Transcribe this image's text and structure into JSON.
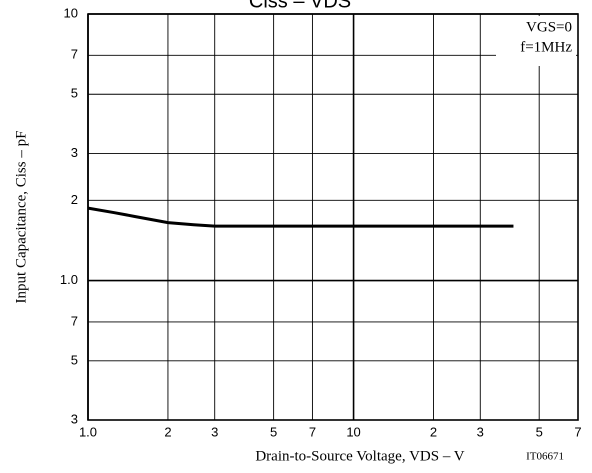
{
  "chart_data": {
    "type": "line",
    "title": "Ciss – VDS",
    "x_label": "Drain-to-Source Voltage, VDS – V",
    "y_label": "Input Capacitance, Ciss – pF",
    "annotations": [
      "VGS=0",
      "f=1MHz"
    ],
    "figure_id": "IT06671",
    "log_x": true,
    "log_y": true,
    "grid": true,
    "xlim": [
      1,
      70
    ],
    "ylim": [
      3,
      100
    ],
    "xticks": [
      {
        "value": 1,
        "label": "1.0"
      },
      2,
      3,
      5,
      7,
      10,
      {
        "value": 20,
        "label": "2"
      },
      {
        "value": 30,
        "label": "3"
      },
      {
        "value": 50,
        "label": "5"
      },
      {
        "value": 70,
        "label": "7"
      }
    ],
    "yticks": [
      3,
      5,
      7,
      {
        "value": 10,
        "label": "1.0"
      },
      {
        "value": 20,
        "label": "2"
      },
      {
        "value": 30,
        "label": "3"
      },
      {
        "value": 50,
        "label": "5"
      },
      {
        "value": 70,
        "label": "7"
      },
      {
        "value": 100,
        "label": "10"
      }
    ],
    "x": [
      1,
      1.25,
      1.5,
      2,
      2.5,
      3,
      40
    ],
    "series": [
      {
        "color": "#000000",
        "values": [
          18.7,
          18.0,
          17.4,
          16.5,
          16.2,
          16.0,
          16.0
        ]
      }
    ]
  }
}
